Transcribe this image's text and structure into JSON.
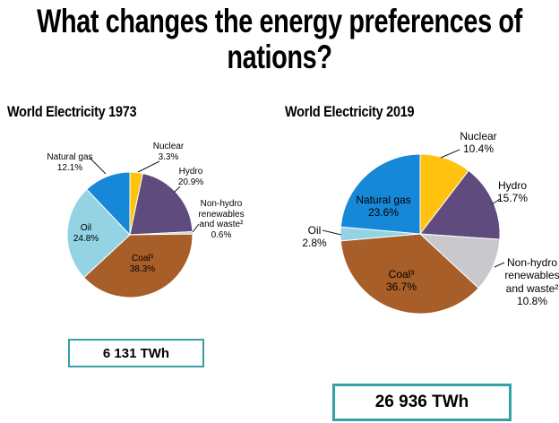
{
  "title": "What changes the energy preferences of nations?",
  "accent_colors": {
    "box_border": "#35A0A5",
    "leader_line": "#1a1a1a"
  },
  "chart_data": [
    {
      "type": "pie",
      "title": "World Electricity 1973",
      "total": "6 131 TWh",
      "units": "TWh",
      "legend_position": "around-pie",
      "slices": [
        {
          "label": "Nuclear",
          "value": 3.3,
          "pct": "3.3%",
          "color": "#FFC20E"
        },
        {
          "label": "Hydro",
          "value": 20.9,
          "pct": "20.9%",
          "color": "#5F4B7E"
        },
        {
          "label": "Non-hydro renewables and waste²",
          "value": 0.6,
          "pct": "0.6%",
          "color": "#C9C9CD"
        },
        {
          "label": "Coal³",
          "value": 38.3,
          "pct": "38.3%",
          "color": "#A85E28"
        },
        {
          "label": "Oil",
          "value": 24.8,
          "pct": "24.8%",
          "color": "#93D3E3"
        },
        {
          "label": "Natural gas",
          "value": 12.1,
          "pct": "12.1%",
          "color": "#1787D8"
        }
      ]
    },
    {
      "type": "pie",
      "title": "World Electricity 2019",
      "total": "26 936 TWh",
      "units": "TWh",
      "legend_position": "around-pie",
      "slices": [
        {
          "label": "Nuclear",
          "value": 10.4,
          "pct": "10.4%",
          "color": "#FFC20E"
        },
        {
          "label": "Hydro",
          "value": 15.7,
          "pct": "15.7%",
          "color": "#5F4B7E"
        },
        {
          "label": "Non-hydro renewables and waste²",
          "value": 10.8,
          "pct": "10.8%",
          "color": "#C9C9CD"
        },
        {
          "label": "Coal³",
          "value": 36.7,
          "pct": "36.7%",
          "color": "#A85E28"
        },
        {
          "label": "Oil",
          "value": 2.8,
          "pct": "2.8%",
          "color": "#93D3E3"
        },
        {
          "label": "Natural gas",
          "value": 23.6,
          "pct": "23.6%",
          "color": "#1787D8"
        }
      ]
    }
  ]
}
